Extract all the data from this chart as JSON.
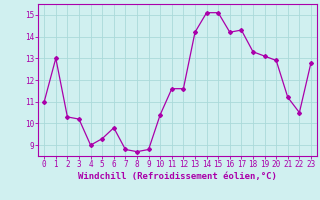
{
  "x": [
    0,
    1,
    2,
    3,
    4,
    5,
    6,
    7,
    8,
    9,
    10,
    11,
    12,
    13,
    14,
    15,
    16,
    17,
    18,
    19,
    20,
    21,
    22,
    23
  ],
  "y": [
    11,
    13,
    10.3,
    10.2,
    9,
    9.3,
    9.8,
    8.8,
    8.7,
    8.8,
    10.4,
    11.6,
    11.6,
    14.2,
    15.1,
    15.1,
    14.2,
    14.3,
    13.3,
    13.1,
    12.9,
    11.2,
    10.5,
    12.8
  ],
  "line_color": "#aa00aa",
  "marker": "D",
  "marker_size": 2,
  "bg_color": "#d0f0f0",
  "grid_color": "#aadada",
  "spine_color": "#aa00aa",
  "tick_color": "#aa00aa",
  "xlabel": "Windchill (Refroidissement éolien,°C)",
  "xlabel_color": "#aa00aa",
  "ylim": [
    8.5,
    15.5
  ],
  "yticks": [
    9,
    10,
    11,
    12,
    13,
    14,
    15
  ],
  "xticks": [
    0,
    1,
    2,
    3,
    4,
    5,
    6,
    7,
    8,
    9,
    10,
    11,
    12,
    13,
    14,
    15,
    16,
    17,
    18,
    19,
    20,
    21,
    22,
    23
  ],
  "tick_fontsize": 5.5,
  "xlabel_fontsize": 6.5
}
